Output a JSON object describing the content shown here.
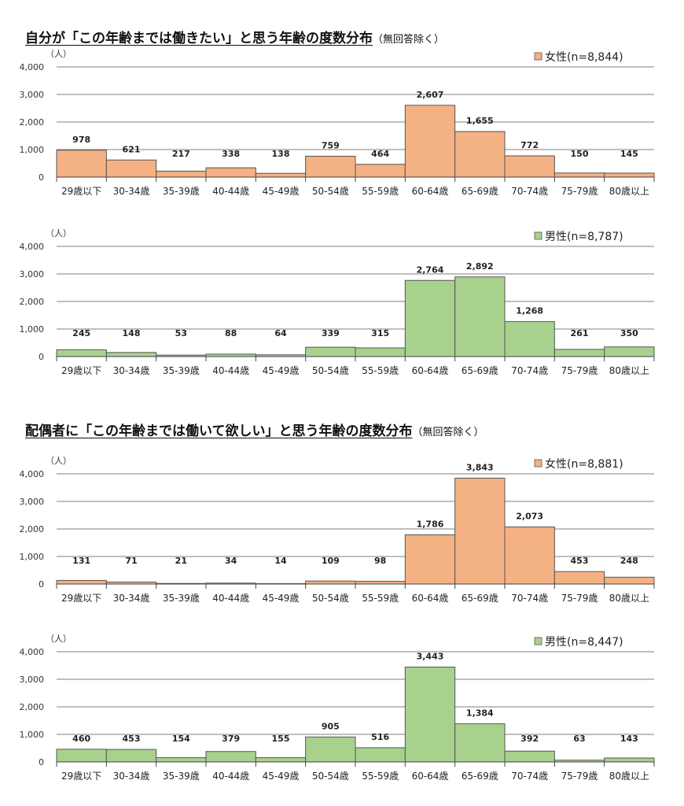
{
  "sections": [
    {
      "title": "自分が「この年齢までは働きたい」と思う年齢の度数分布",
      "note": "（無回答除く）"
    },
    {
      "title": "配偶者に「この年齢までは働いて欲しい」と思う年齢の度数分布",
      "note": "（無回答除く）"
    }
  ],
  "colors": {
    "female": "#F4B183",
    "male": "#A9D18E",
    "bar_border": "#555555"
  },
  "chart_data": [
    {
      "type": "bar",
      "title": "自分が「この年齢までは働きたい」と思う年齢の度数分布",
      "ylabel": "（人）",
      "ylim": [
        0,
        4000
      ],
      "yticks": [
        "0",
        "1,000",
        "2,000",
        "3,000",
        "4,000"
      ],
      "legend": "女性(n=8,844)",
      "color": "#F4B183",
      "categories": [
        "29歳以下",
        "30-34歳",
        "35-39歳",
        "40-44歳",
        "45-49歳",
        "50-54歳",
        "55-59歳",
        "60-64歳",
        "65-69歳",
        "70-74歳",
        "75-79歳",
        "80歳以上"
      ],
      "values": [
        978,
        621,
        217,
        338,
        138,
        759,
        464,
        2607,
        1655,
        772,
        150,
        145
      ],
      "labels": [
        "978",
        "621",
        "217",
        "338",
        "138",
        "759",
        "464",
        "2,607",
        "1,655",
        "772",
        "150",
        "145"
      ]
    },
    {
      "type": "bar",
      "title": "自分が「この年齢までは働きたい」と思う年齢の度数分布",
      "ylabel": "（人）",
      "ylim": [
        0,
        4000
      ],
      "yticks": [
        "0",
        "1,000",
        "2,000",
        "3,000",
        "4,000"
      ],
      "legend": "男性(n=8,787)",
      "color": "#A9D18E",
      "categories": [
        "29歳以下",
        "30-34歳",
        "35-39歳",
        "40-44歳",
        "45-49歳",
        "50-54歳",
        "55-59歳",
        "60-64歳",
        "65-69歳",
        "70-74歳",
        "75-79歳",
        "80歳以上"
      ],
      "values": [
        245,
        148,
        53,
        88,
        64,
        339,
        315,
        2764,
        2892,
        1268,
        261,
        350
      ],
      "labels": [
        "245",
        "148",
        "53",
        "88",
        "64",
        "339",
        "315",
        "2,764",
        "2,892",
        "1,268",
        "261",
        "350"
      ]
    },
    {
      "type": "bar",
      "title": "配偶者に「この年齢までは働いて欲しい」と思う年齢の度数分布",
      "ylabel": "（人）",
      "ylim": [
        0,
        4000
      ],
      "yticks": [
        "0",
        "1,000",
        "2,000",
        "3,000",
        "4,000"
      ],
      "legend": "女性(n=8,881)",
      "color": "#F4B183",
      "categories": [
        "29歳以下",
        "30-34歳",
        "35-39歳",
        "40-44歳",
        "45-49歳",
        "50-54歳",
        "55-59歳",
        "60-64歳",
        "65-69歳",
        "70-74歳",
        "75-79歳",
        "80歳以上"
      ],
      "values": [
        131,
        71,
        21,
        34,
        14,
        109,
        98,
        1786,
        3843,
        2073,
        453,
        248
      ],
      "labels": [
        "131",
        "71",
        "21",
        "34",
        "14",
        "109",
        "98",
        "1,786",
        "3,843",
        "2,073",
        "453",
        "248"
      ]
    },
    {
      "type": "bar",
      "title": "配偶者に「この年齢までは働いて欲しい」と思う年齢の度数分布",
      "ylabel": "（人）",
      "ylim": [
        0,
        4000
      ],
      "yticks": [
        "0",
        "1,000",
        "2,000",
        "3,000",
        "4,000"
      ],
      "legend": "男性(n=8,447)",
      "color": "#A9D18E",
      "categories": [
        "29歳以下",
        "30-34歳",
        "35-39歳",
        "40-44歳",
        "45-49歳",
        "50-54歳",
        "55-59歳",
        "60-64歳",
        "65-69歳",
        "70-74歳",
        "75-79歳",
        "80歳以上"
      ],
      "values": [
        460,
        453,
        154,
        379,
        155,
        905,
        516,
        3443,
        1384,
        392,
        63,
        143
      ],
      "labels": [
        "460",
        "453",
        "154",
        "379",
        "155",
        "905",
        "516",
        "3,443",
        "1,384",
        "392",
        "63",
        "143"
      ]
    }
  ]
}
